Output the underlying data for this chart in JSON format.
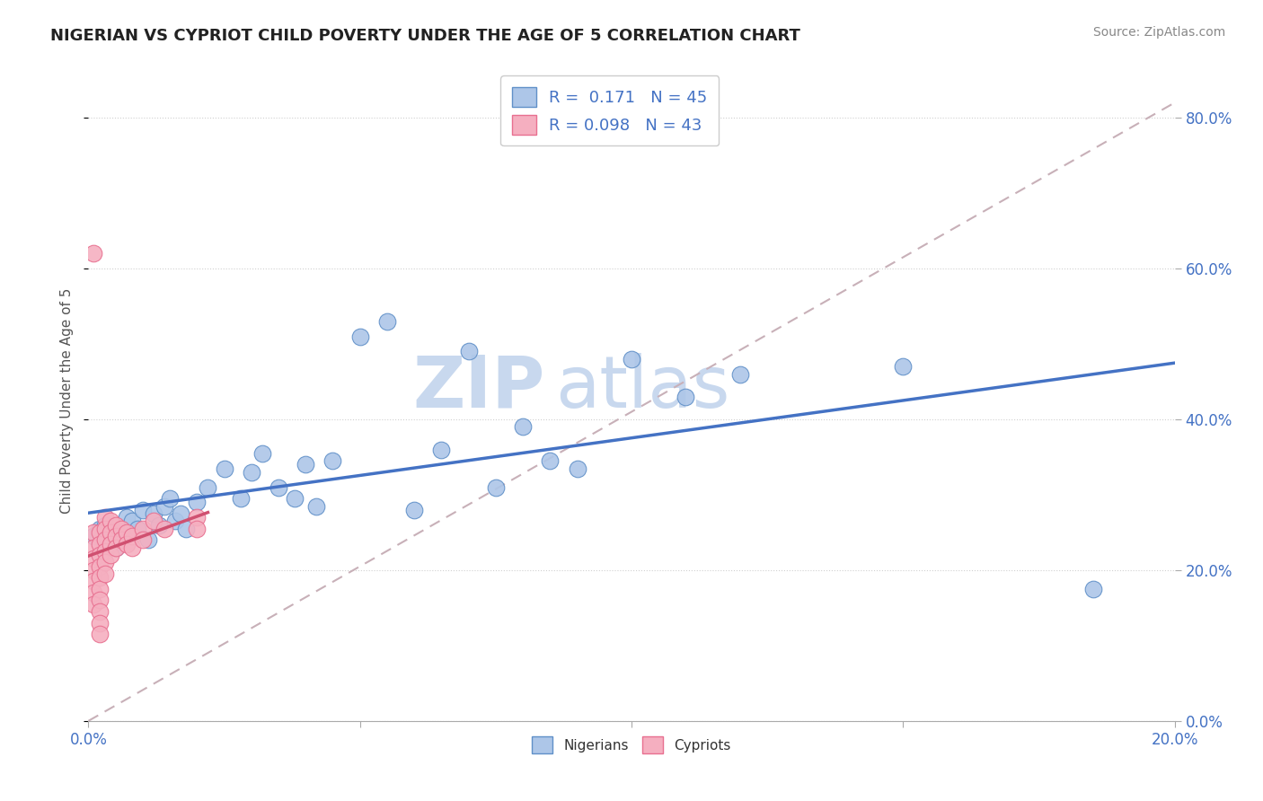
{
  "title": "NIGERIAN VS CYPRIOT CHILD POVERTY UNDER THE AGE OF 5 CORRELATION CHART",
  "source": "Source: ZipAtlas.com",
  "xmin": 0.0,
  "xmax": 0.2,
  "ymin": 0.0,
  "ymax": 0.85,
  "ylabel": "Child Poverty Under the Age of 5",
  "nigerian_R": "0.171",
  "nigerian_N": "45",
  "cypriot_R": "0.098",
  "cypriot_N": "43",
  "nigerian_color": "#adc6e8",
  "cypriot_color": "#f5afc0",
  "nigerian_edge_color": "#6090c8",
  "cypriot_edge_color": "#e87090",
  "nigerian_line_color": "#4472c4",
  "cypriot_line_color": "#d05070",
  "dash_line_color": "#c8b0b8",
  "background_color": "#ffffff",
  "legend_text_color": "#4472c4",
  "nigerians_label": "Nigerians",
  "cypriots_label": "Cypriots",
  "nigerian_scatter_x": [
    0.001,
    0.002,
    0.003,
    0.003,
    0.004,
    0.005,
    0.005,
    0.006,
    0.007,
    0.008,
    0.009,
    0.01,
    0.011,
    0.012,
    0.013,
    0.014,
    0.015,
    0.016,
    0.017,
    0.018,
    0.02,
    0.022,
    0.025,
    0.028,
    0.03,
    0.032,
    0.035,
    0.038,
    0.04,
    0.042,
    0.045,
    0.05,
    0.055,
    0.06,
    0.065,
    0.07,
    0.075,
    0.08,
    0.085,
    0.09,
    0.1,
    0.11,
    0.12,
    0.15,
    0.185
  ],
  "nigerian_scatter_y": [
    0.245,
    0.255,
    0.235,
    0.26,
    0.24,
    0.25,
    0.23,
    0.245,
    0.27,
    0.265,
    0.255,
    0.28,
    0.24,
    0.275,
    0.26,
    0.285,
    0.295,
    0.265,
    0.275,
    0.255,
    0.29,
    0.31,
    0.335,
    0.295,
    0.33,
    0.355,
    0.31,
    0.295,
    0.34,
    0.285,
    0.345,
    0.51,
    0.53,
    0.28,
    0.36,
    0.49,
    0.31,
    0.39,
    0.345,
    0.335,
    0.48,
    0.43,
    0.46,
    0.47,
    0.175
  ],
  "cypriot_scatter_x": [
    0.001,
    0.001,
    0.001,
    0.001,
    0.001,
    0.001,
    0.001,
    0.001,
    0.002,
    0.002,
    0.002,
    0.002,
    0.002,
    0.002,
    0.002,
    0.002,
    0.002,
    0.002,
    0.003,
    0.003,
    0.003,
    0.003,
    0.003,
    0.003,
    0.004,
    0.004,
    0.004,
    0.004,
    0.005,
    0.005,
    0.005,
    0.006,
    0.006,
    0.007,
    0.007,
    0.008,
    0.008,
    0.01,
    0.01,
    0.012,
    0.014,
    0.02,
    0.02
  ],
  "cypriot_scatter_y": [
    0.62,
    0.25,
    0.23,
    0.215,
    0.2,
    0.185,
    0.17,
    0.155,
    0.25,
    0.235,
    0.22,
    0.205,
    0.19,
    0.175,
    0.16,
    0.145,
    0.13,
    0.115,
    0.27,
    0.255,
    0.24,
    0.225,
    0.21,
    0.195,
    0.265,
    0.25,
    0.235,
    0.22,
    0.26,
    0.245,
    0.23,
    0.255,
    0.24,
    0.25,
    0.235,
    0.245,
    0.23,
    0.255,
    0.24,
    0.265,
    0.255,
    0.27,
    0.255
  ],
  "watermark_zip": "ZIP",
  "watermark_atlas": "atlas",
  "watermark_color": "#c8d8ee"
}
